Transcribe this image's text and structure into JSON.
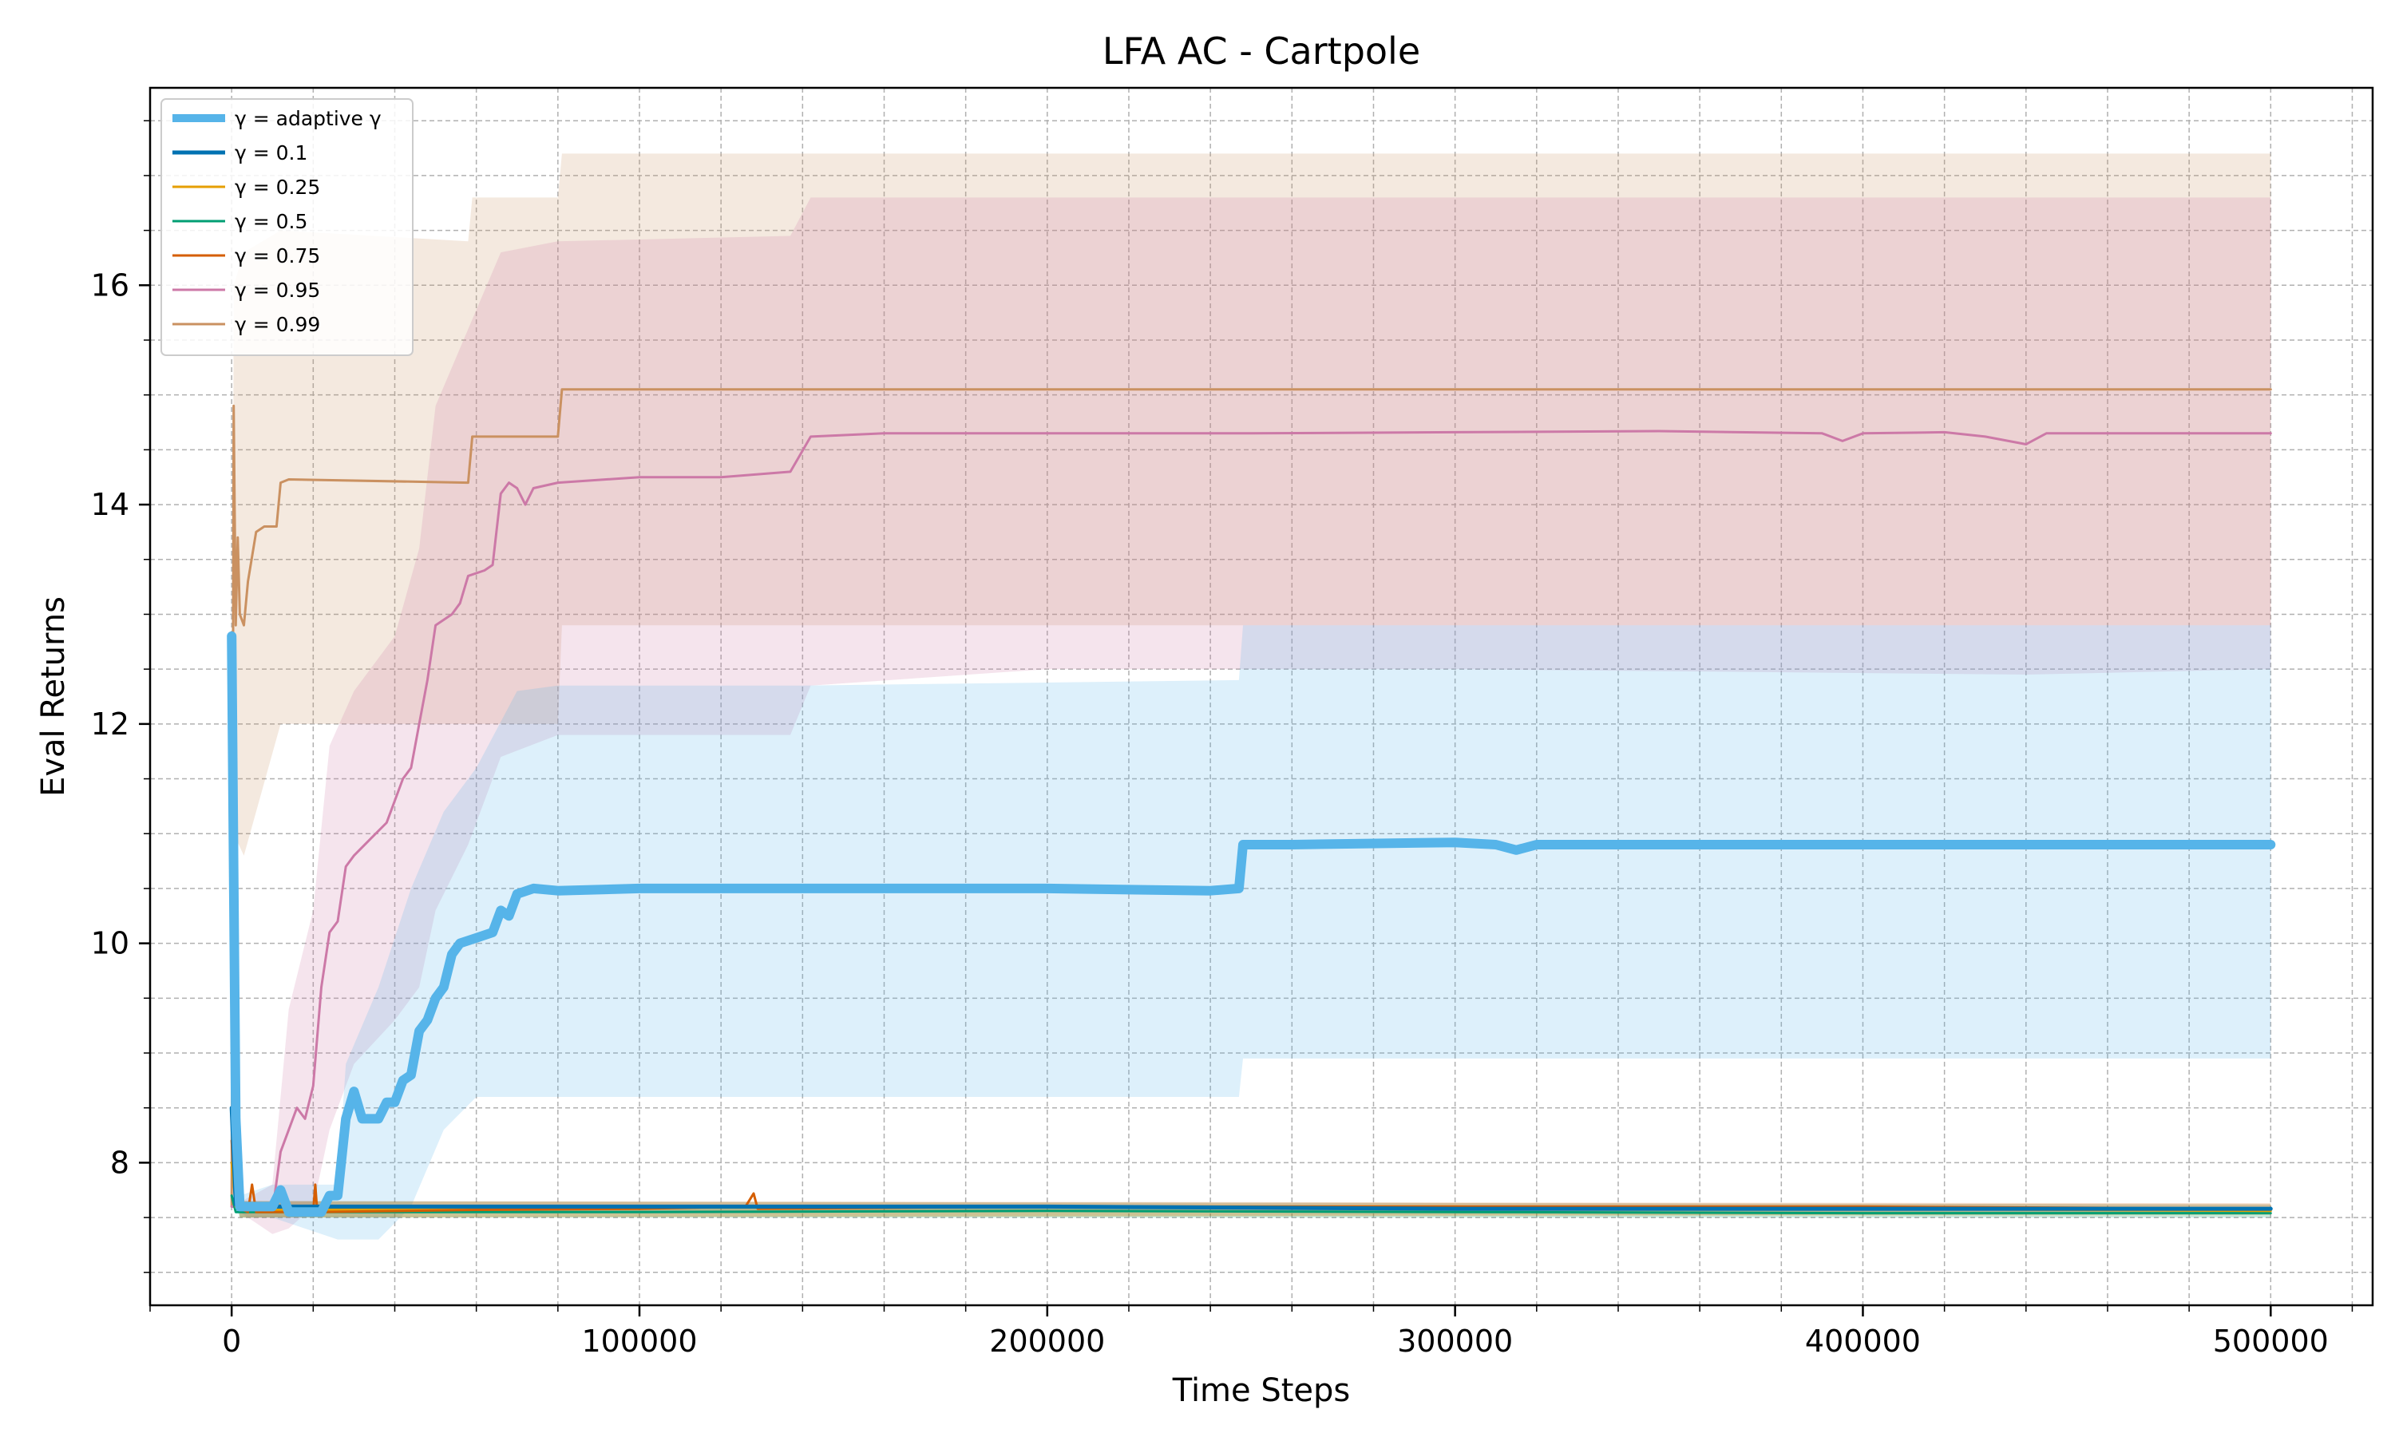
{
  "chart_data": {
    "type": "line",
    "title": "LFA AC - Cartpole",
    "xlabel": "Time Steps",
    "ylabel": "Eval Returns",
    "xlim": [
      -20000,
      525000
    ],
    "ylim": [
      6.7,
      17.8
    ],
    "xticks": [
      0,
      100000,
      200000,
      300000,
      400000,
      500000
    ],
    "yticks": [
      8,
      10,
      12,
      14,
      16
    ],
    "x_minor_step": 20000,
    "y_minor_step": 0.5,
    "grid": true,
    "legend_position": "top-left",
    "series": [
      {
        "name": "γ = adaptive γ",
        "color": "#56b4e9",
        "width": 12,
        "points": [
          [
            0,
            12.8
          ],
          [
            1000,
            8.4
          ],
          [
            2000,
            7.6
          ],
          [
            5000,
            7.6
          ],
          [
            10000,
            7.6
          ],
          [
            12000,
            7.75
          ],
          [
            14000,
            7.55
          ],
          [
            22000,
            7.55
          ],
          [
            24000,
            7.7
          ],
          [
            26000,
            7.7
          ],
          [
            28000,
            8.4
          ],
          [
            30000,
            8.65
          ],
          [
            32000,
            8.4
          ],
          [
            36000,
            8.4
          ],
          [
            38000,
            8.55
          ],
          [
            40000,
            8.55
          ],
          [
            42000,
            8.75
          ],
          [
            44000,
            8.8
          ],
          [
            46000,
            9.2
          ],
          [
            48000,
            9.3
          ],
          [
            50000,
            9.5
          ],
          [
            52000,
            9.6
          ],
          [
            54000,
            9.9
          ],
          [
            56000,
            10.0
          ],
          [
            60000,
            10.05
          ],
          [
            64000,
            10.1
          ],
          [
            66000,
            10.3
          ],
          [
            68000,
            10.25
          ],
          [
            70000,
            10.45
          ],
          [
            74000,
            10.5
          ],
          [
            80000,
            10.48
          ],
          [
            100000,
            10.5
          ],
          [
            150000,
            10.5
          ],
          [
            200000,
            10.5
          ],
          [
            240000,
            10.48
          ],
          [
            247000,
            10.5
          ],
          [
            248000,
            10.9
          ],
          [
            250000,
            10.9
          ],
          [
            260000,
            10.9
          ],
          [
            300000,
            10.92
          ],
          [
            310000,
            10.9
          ],
          [
            315000,
            10.85
          ],
          [
            320000,
            10.9
          ],
          [
            350000,
            10.9
          ],
          [
            400000,
            10.9
          ],
          [
            450000,
            10.9
          ],
          [
            500000,
            10.9
          ]
        ],
        "band": [
          [
            0,
            12.8,
            12.8
          ],
          [
            2000,
            7.5,
            7.7
          ],
          [
            10000,
            7.5,
            7.8
          ],
          [
            26000,
            7.3,
            7.8
          ],
          [
            28000,
            7.3,
            8.9
          ],
          [
            36000,
            7.3,
            9.6
          ],
          [
            44000,
            7.6,
            10.5
          ],
          [
            52000,
            8.3,
            11.2
          ],
          [
            60000,
            8.6,
            11.6
          ],
          [
            70000,
            8.6,
            12.3
          ],
          [
            80000,
            8.6,
            12.35
          ],
          [
            140000,
            8.6,
            12.35
          ],
          [
            247000,
            8.6,
            12.4
          ],
          [
            248000,
            8.95,
            12.9
          ],
          [
            300000,
            8.95,
            12.9
          ],
          [
            400000,
            8.95,
            12.9
          ],
          [
            500000,
            8.95,
            12.9
          ]
        ]
      },
      {
        "name": "γ = 0.1",
        "color": "#0072b2",
        "width": 5,
        "points": [
          [
            0,
            8.5
          ],
          [
            1000,
            7.62
          ],
          [
            10000,
            7.6
          ],
          [
            100000,
            7.6
          ],
          [
            200000,
            7.6
          ],
          [
            300000,
            7.58
          ],
          [
            400000,
            7.58
          ],
          [
            500000,
            7.58
          ]
        ],
        "band": [
          [
            0,
            8.5,
            8.5
          ],
          [
            2000,
            7.55,
            7.65
          ],
          [
            500000,
            7.55,
            7.62
          ]
        ]
      },
      {
        "name": "γ = 0.25",
        "color": "#e69f00",
        "width": 3,
        "points": [
          [
            0,
            8.0
          ],
          [
            1000,
            7.6
          ],
          [
            10000,
            7.57
          ],
          [
            50000,
            7.58
          ],
          [
            100000,
            7.59
          ],
          [
            200000,
            7.6
          ],
          [
            300000,
            7.6
          ],
          [
            400000,
            7.58
          ],
          [
            500000,
            7.56
          ]
        ],
        "band": [
          [
            0,
            8.0,
            8.0
          ],
          [
            2000,
            7.5,
            7.65
          ],
          [
            500000,
            7.52,
            7.62
          ]
        ]
      },
      {
        "name": "γ = 0.5",
        "color": "#009e73",
        "width": 3,
        "points": [
          [
            0,
            7.7
          ],
          [
            1000,
            7.55
          ],
          [
            10000,
            7.55
          ],
          [
            100000,
            7.55
          ],
          [
            200000,
            7.56
          ],
          [
            300000,
            7.55
          ],
          [
            400000,
            7.54
          ],
          [
            500000,
            7.54
          ]
        ],
        "band": [
          [
            0,
            7.7,
            7.7
          ],
          [
            2000,
            7.5,
            7.6
          ],
          [
            500000,
            7.5,
            7.58
          ]
        ]
      },
      {
        "name": "γ = 0.75",
        "color": "#d55e00",
        "width": 3,
        "points": [
          [
            0,
            8.2
          ],
          [
            1000,
            7.6
          ],
          [
            4000,
            7.55
          ],
          [
            5000,
            7.8
          ],
          [
            6000,
            7.55
          ],
          [
            20000,
            7.55
          ],
          [
            20500,
            7.8
          ],
          [
            21000,
            7.55
          ],
          [
            60000,
            7.57
          ],
          [
            100000,
            7.58
          ],
          [
            126000,
            7.6
          ],
          [
            128000,
            7.72
          ],
          [
            129000,
            7.58
          ],
          [
            200000,
            7.6
          ],
          [
            300000,
            7.6
          ],
          [
            400000,
            7.6
          ],
          [
            500000,
            7.58
          ]
        ],
        "band": [
          [
            0,
            8.2,
            8.2
          ],
          [
            2000,
            7.5,
            7.65
          ],
          [
            500000,
            7.53,
            7.63
          ]
        ]
      },
      {
        "name": "γ = 0.95",
        "color": "#cc79a7",
        "width": 3,
        "points": [
          [
            0,
            7.6
          ],
          [
            5000,
            7.58
          ],
          [
            10000,
            7.55
          ],
          [
            12000,
            8.1
          ],
          [
            16000,
            8.5
          ],
          [
            18000,
            8.4
          ],
          [
            20000,
            8.7
          ],
          [
            22000,
            9.6
          ],
          [
            24000,
            10.1
          ],
          [
            26000,
            10.2
          ],
          [
            28000,
            10.7
          ],
          [
            30000,
            10.8
          ],
          [
            34000,
            10.95
          ],
          [
            38000,
            11.1
          ],
          [
            40000,
            11.3
          ],
          [
            42000,
            11.5
          ],
          [
            44000,
            11.6
          ],
          [
            46000,
            12.0
          ],
          [
            48000,
            12.4
          ],
          [
            50000,
            12.9
          ],
          [
            54000,
            13.0
          ],
          [
            56000,
            13.1
          ],
          [
            58000,
            13.35
          ],
          [
            62000,
            13.4
          ],
          [
            64000,
            13.45
          ],
          [
            66000,
            14.1
          ],
          [
            68000,
            14.2
          ],
          [
            70000,
            14.15
          ],
          [
            72000,
            14.0
          ],
          [
            74000,
            14.15
          ],
          [
            80000,
            14.2
          ],
          [
            100000,
            14.25
          ],
          [
            120000,
            14.25
          ],
          [
            137000,
            14.3
          ],
          [
            142000,
            14.62
          ],
          [
            160000,
            14.65
          ],
          [
            200000,
            14.65
          ],
          [
            250000,
            14.65
          ],
          [
            300000,
            14.66
          ],
          [
            350000,
            14.67
          ],
          [
            390000,
            14.65
          ],
          [
            395000,
            14.58
          ],
          [
            400000,
            14.65
          ],
          [
            420000,
            14.66
          ],
          [
            430000,
            14.62
          ],
          [
            440000,
            14.55
          ],
          [
            445000,
            14.65
          ],
          [
            500000,
            14.65
          ]
        ],
        "band": [
          [
            0,
            7.6,
            7.6
          ],
          [
            10000,
            7.35,
            7.8
          ],
          [
            14000,
            7.4,
            9.4
          ],
          [
            20000,
            7.6,
            10.3
          ],
          [
            24000,
            8.3,
            11.8
          ],
          [
            30000,
            8.9,
            12.3
          ],
          [
            40000,
            9.3,
            12.8
          ],
          [
            46000,
            9.6,
            13.6
          ],
          [
            50000,
            10.3,
            14.9
          ],
          [
            58000,
            10.9,
            15.6
          ],
          [
            66000,
            11.7,
            16.3
          ],
          [
            80000,
            11.9,
            16.4
          ],
          [
            137000,
            11.9,
            16.45
          ],
          [
            142000,
            12.35,
            16.8
          ],
          [
            200000,
            12.5,
            16.8
          ],
          [
            300000,
            12.5,
            16.8
          ],
          [
            440000,
            12.45,
            16.8
          ],
          [
            500000,
            12.5,
            16.8
          ]
        ]
      },
      {
        "name": "γ = 0.99",
        "color": "#ca9161",
        "width": 3,
        "points": [
          [
            0,
            7.6
          ],
          [
            500,
            14.9
          ],
          [
            1000,
            12.9
          ],
          [
            1500,
            13.7
          ],
          [
            2000,
            13.0
          ],
          [
            3000,
            12.9
          ],
          [
            4000,
            13.3
          ],
          [
            6000,
            13.75
          ],
          [
            8000,
            13.8
          ],
          [
            11000,
            13.8
          ],
          [
            12000,
            14.2
          ],
          [
            14000,
            14.23
          ],
          [
            58000,
            14.2
          ],
          [
            59000,
            14.62
          ],
          [
            80000,
            14.62
          ],
          [
            81000,
            15.05
          ],
          [
            100000,
            15.05
          ],
          [
            200000,
            15.05
          ],
          [
            300000,
            15.05
          ],
          [
            400000,
            15.05
          ],
          [
            500000,
            15.05
          ]
        ],
        "band": [
          [
            0,
            7.6,
            7.6
          ],
          [
            500,
            11.0,
            16.0
          ],
          [
            3000,
            10.8,
            16.3
          ],
          [
            12000,
            12.0,
            16.5
          ],
          [
            58000,
            12.0,
            16.4
          ],
          [
            59000,
            12.0,
            16.8
          ],
          [
            80000,
            12.0,
            16.8
          ],
          [
            81000,
            12.9,
            17.2
          ],
          [
            100000,
            12.9,
            17.2
          ],
          [
            500000,
            12.9,
            17.2
          ]
        ]
      }
    ]
  }
}
